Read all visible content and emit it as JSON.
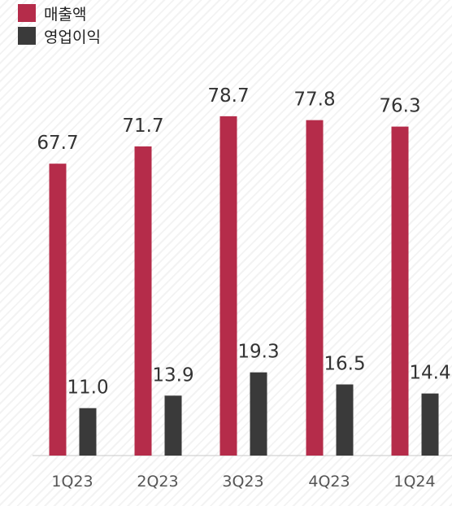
{
  "chart_data": {
    "type": "bar",
    "categories": [
      "1Q23",
      "2Q23",
      "3Q23",
      "4Q23",
      "1Q24"
    ],
    "series": [
      {
        "name": "매출액",
        "values": [
          67.7,
          71.7,
          78.7,
          77.8,
          76.3
        ],
        "color": "#B52C4A"
      },
      {
        "name": "영업이익",
        "values": [
          11.0,
          13.9,
          19.3,
          16.5,
          14.4
        ],
        "color": "#3A3A3A"
      }
    ],
    "data_labels": [
      [
        "67.7",
        "71.7",
        "78.7",
        "77.8",
        "76.3"
      ],
      [
        "11.0",
        "13.9",
        "19.3",
        "16.5",
        "14.4"
      ]
    ],
    "title": "",
    "xlabel": "",
    "ylabel": "",
    "ylim": [
      0,
      85
    ],
    "grid": false,
    "legend": "top-left"
  }
}
